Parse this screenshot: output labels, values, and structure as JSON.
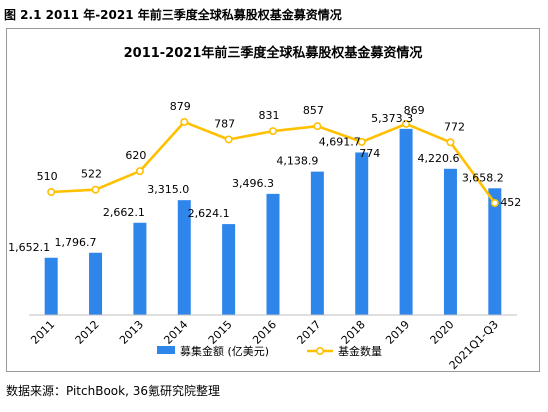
{
  "figure": {
    "caption": "图 2.1 2011 年-2021 年前三季度全球私募股权基金募资情况",
    "source": "数据来源：PitchBook, 36氪研究院整理"
  },
  "colors": {
    "bar": "#2f86ea",
    "line": "#ffc000",
    "axis": "#bfbfbf",
    "frame": "#9a9a9a"
  },
  "chart_data": {
    "type": "bar",
    "title": "2011-2021年前三季度全球私募股权基金募资情况",
    "xlabel": "",
    "ylabel": "",
    "grid": false,
    "legend_position": "bottom",
    "categories": [
      "2011",
      "2012",
      "2013",
      "2014",
      "2015",
      "2016",
      "2017",
      "2018",
      "2019",
      "2020",
      "2021Q1-Q3"
    ],
    "series": [
      {
        "name": "募集金额 (亿美元)",
        "type": "bar",
        "values": [
          1652.1,
          1796.7,
          2662.1,
          3315.0,
          2624.1,
          3496.3,
          4138.9,
          4691.7,
          5373.3,
          4220.6,
          3658.2
        ],
        "labels": [
          "1,652.1",
          "1,796.7",
          "2,662.1",
          "3,315.0",
          "2,624.1",
          "3,496.3",
          "4,138.9",
          "4,691.7",
          "5,373.3",
          "4,220.6",
          "3,658.2"
        ]
      },
      {
        "name": "基金数量",
        "type": "line",
        "values": [
          510,
          522,
          620,
          879,
          787,
          831,
          857,
          774,
          869,
          772,
          452
        ],
        "labels": [
          "510",
          "522",
          "620",
          "879",
          "787",
          "831",
          "857",
          "774",
          "869",
          "772",
          "452"
        ]
      }
    ]
  }
}
